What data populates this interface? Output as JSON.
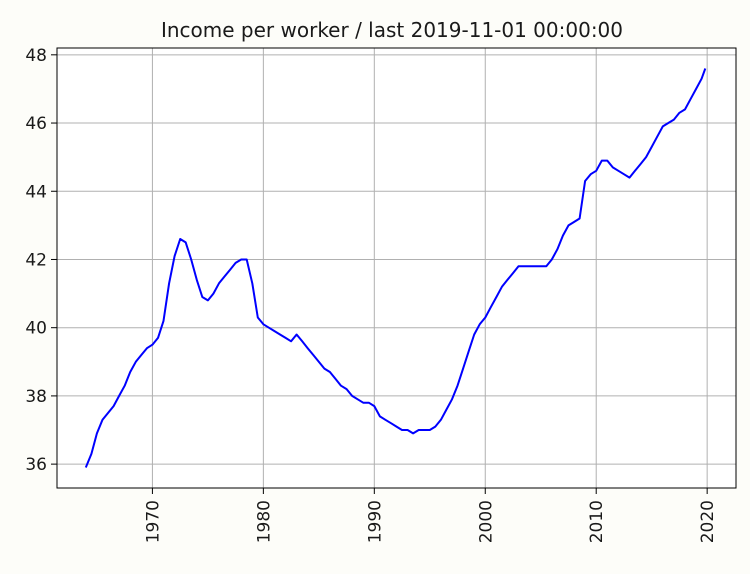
{
  "chart_data": {
    "type": "line",
    "title": "Income per worker / last 2019-11-01 00:00:00",
    "xlabel": "",
    "ylabel": "",
    "xlim": [
      1961.4,
      2022.6
    ],
    "ylim": [
      35.3,
      48.2
    ],
    "x_ticks": [
      1970,
      1980,
      1990,
      2000,
      2010,
      2020
    ],
    "y_ticks": [
      36,
      38,
      40,
      42,
      44,
      46,
      48
    ],
    "grid": true,
    "legend": "none",
    "series": [
      {
        "color": "#0000ff",
        "x": [
          1964.0,
          1964.5,
          1965.0,
          1965.5,
          1966.0,
          1966.5,
          1967.0,
          1967.5,
          1968.0,
          1968.5,
          1969.0,
          1969.5,
          1970.0,
          1970.5,
          1971.0,
          1971.5,
          1972.0,
          1972.5,
          1973.0,
          1973.5,
          1974.0,
          1974.5,
          1975.0,
          1975.5,
          1976.0,
          1976.5,
          1977.0,
          1977.5,
          1978.0,
          1978.5,
          1979.0,
          1979.5,
          1980.0,
          1980.5,
          1981.0,
          1981.5,
          1982.0,
          1982.5,
          1983.0,
          1983.5,
          1984.0,
          1984.5,
          1985.0,
          1985.5,
          1986.0,
          1986.5,
          1987.0,
          1987.5,
          1988.0,
          1988.5,
          1989.0,
          1989.5,
          1990.0,
          1990.5,
          1991.0,
          1991.5,
          1992.0,
          1992.5,
          1993.0,
          1993.5,
          1994.0,
          1994.5,
          1995.0,
          1995.5,
          1996.0,
          1996.5,
          1997.0,
          1997.5,
          1998.0,
          1998.5,
          1999.0,
          1999.5,
          2000.0,
          2000.5,
          2001.0,
          2001.5,
          2002.0,
          2002.5,
          2003.0,
          2003.5,
          2004.0,
          2004.5,
          2005.0,
          2005.5,
          2006.0,
          2006.5,
          2007.0,
          2007.5,
          2008.0,
          2008.5,
          2009.0,
          2009.5,
          2010.0,
          2010.5,
          2011.0,
          2011.5,
          2012.0,
          2012.5,
          2013.0,
          2013.5,
          2014.0,
          2014.5,
          2015.0,
          2015.5,
          2016.0,
          2016.5,
          2017.0,
          2017.5,
          2018.0,
          2018.5,
          2019.0,
          2019.5,
          2019.83
        ],
        "y": [
          35.9,
          36.3,
          36.9,
          37.3,
          37.5,
          37.7,
          38.0,
          38.3,
          38.7,
          39.0,
          39.2,
          39.4,
          39.5,
          39.7,
          40.2,
          41.3,
          42.1,
          42.6,
          42.5,
          42.0,
          41.4,
          40.9,
          40.8,
          41.0,
          41.3,
          41.5,
          41.7,
          41.9,
          42.0,
          42.0,
          41.3,
          40.3,
          40.1,
          40.0,
          39.9,
          39.8,
          39.7,
          39.6,
          39.8,
          39.6,
          39.4,
          39.2,
          39.0,
          38.8,
          38.7,
          38.5,
          38.3,
          38.2,
          38.0,
          37.9,
          37.8,
          37.8,
          37.7,
          37.4,
          37.3,
          37.2,
          37.1,
          37.0,
          37.0,
          36.9,
          37.0,
          37.0,
          37.0,
          37.1,
          37.3,
          37.6,
          37.9,
          38.3,
          38.8,
          39.3,
          39.8,
          40.1,
          40.3,
          40.6,
          40.9,
          41.2,
          41.4,
          41.6,
          41.8,
          41.8,
          41.8,
          41.8,
          41.8,
          41.8,
          42.0,
          42.3,
          42.7,
          43.0,
          43.1,
          43.2,
          44.3,
          44.5,
          44.6,
          44.9,
          44.9,
          44.7,
          44.6,
          44.5,
          44.4,
          44.6,
          44.8,
          45.0,
          45.3,
          45.6,
          45.9,
          46.0,
          46.1,
          46.3,
          46.4,
          46.7,
          47.0,
          47.3,
          47.6
        ]
      }
    ]
  }
}
